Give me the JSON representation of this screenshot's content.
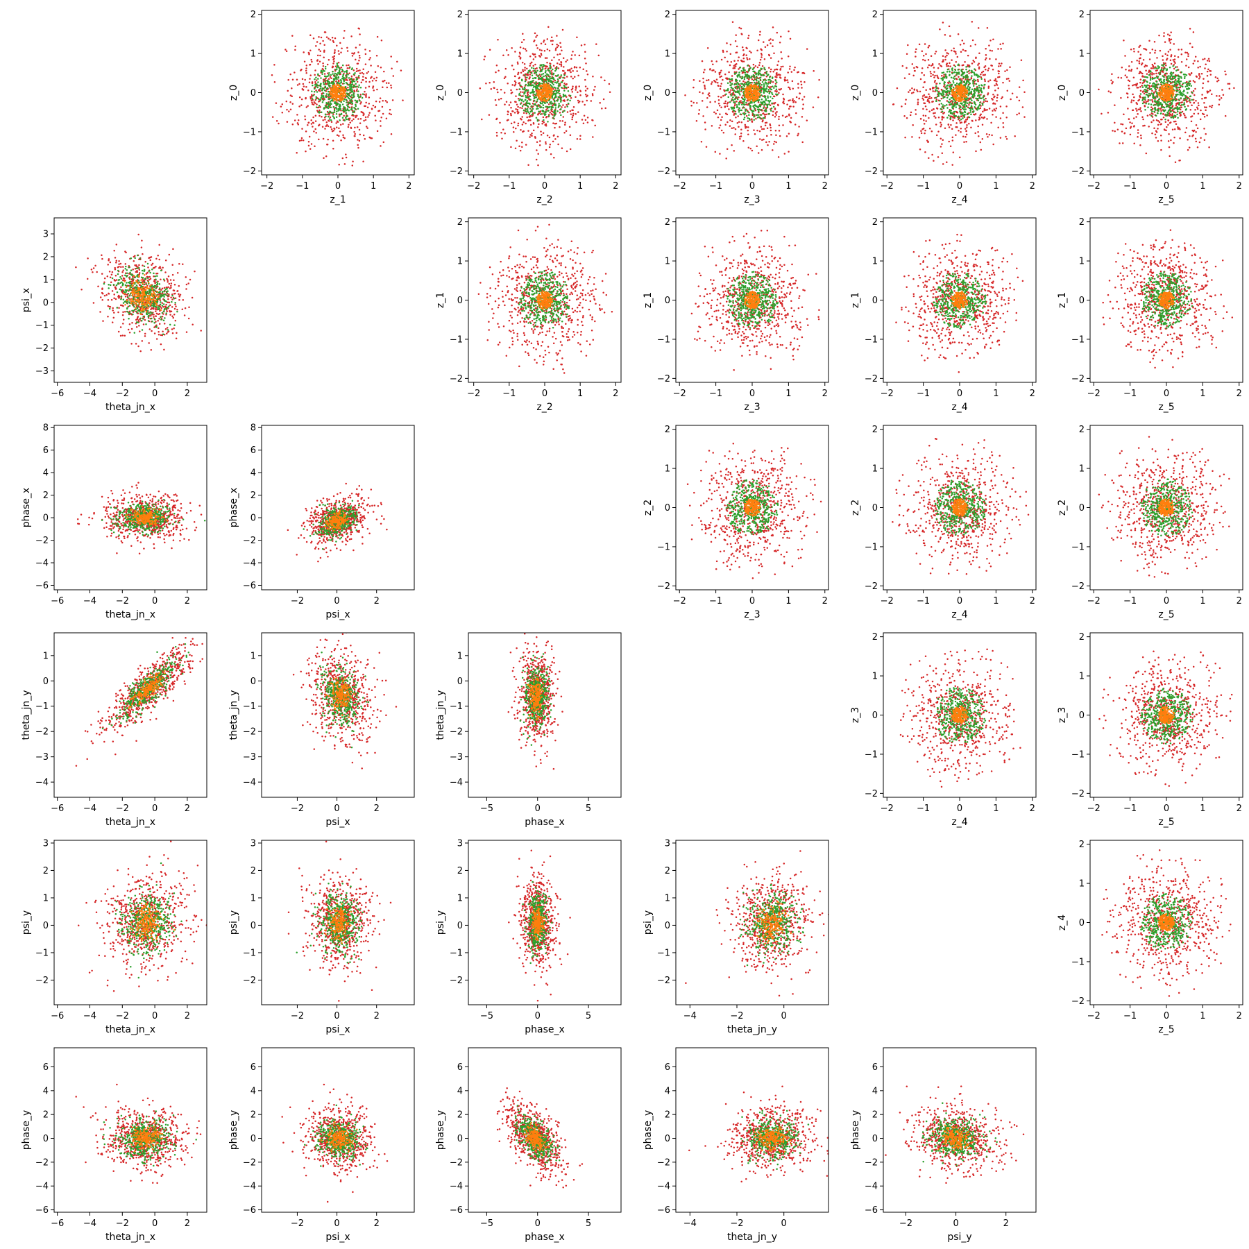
{
  "colors": {
    "outer": "#d62728",
    "mid": "#2ca02c",
    "inner": "#ff7f0e"
  },
  "chart_data": [
    {
      "type": "scatter",
      "row": 0,
      "col": 1,
      "xlabel": "z_1",
      "ylabel": "z_0",
      "xlim": [
        -2.15,
        2.15
      ],
      "ylim": [
        -2.1,
        2.1
      ],
      "xticks": [
        -2,
        -1,
        0,
        1,
        2
      ],
      "yticks": [
        -2,
        -1,
        0,
        1,
        2
      ],
      "dist": {
        "kind": "gauss",
        "mx": 0,
        "my": 0,
        "sx": 0.75,
        "sy": 0.72,
        "rho": 0,
        "clip": 1.95
      }
    },
    {
      "type": "scatter",
      "row": 0,
      "col": 2,
      "xlabel": "z_2",
      "ylabel": "z_0",
      "xlim": [
        -2.15,
        2.15
      ],
      "ylim": [
        -2.1,
        2.1
      ],
      "xticks": [
        -2,
        -1,
        0,
        1,
        2
      ],
      "yticks": [
        -2,
        -1,
        0,
        1,
        2
      ],
      "dist": {
        "kind": "gauss",
        "mx": 0,
        "my": 0,
        "sx": 0.75,
        "sy": 0.72,
        "rho": 0,
        "clip": 1.95
      }
    },
    {
      "type": "scatter",
      "row": 0,
      "col": 3,
      "xlabel": "z_3",
      "ylabel": "z_0",
      "xlim": [
        -2.1,
        2.1
      ],
      "ylim": [
        -2.1,
        2.1
      ],
      "xticks": [
        -2,
        -1,
        0,
        1,
        2
      ],
      "yticks": [
        -2,
        -1,
        0,
        1,
        2
      ],
      "dist": {
        "kind": "gauss",
        "mx": 0,
        "my": 0,
        "sx": 0.72,
        "sy": 0.72,
        "rho": 0,
        "clip": 1.9
      }
    },
    {
      "type": "scatter",
      "row": 0,
      "col": 4,
      "xlabel": "z_4",
      "ylabel": "z_0",
      "xlim": [
        -2.1,
        2.1
      ],
      "ylim": [
        -2.1,
        2.1
      ],
      "xticks": [
        -2,
        -1,
        0,
        1,
        2
      ],
      "yticks": [
        -2,
        -1,
        0,
        1,
        2
      ],
      "dist": {
        "kind": "gauss",
        "mx": 0,
        "my": 0,
        "sx": 0.72,
        "sy": 0.72,
        "rho": 0,
        "clip": 1.9
      }
    },
    {
      "type": "scatter",
      "row": 0,
      "col": 5,
      "xlabel": "z_5",
      "ylabel": "z_0",
      "xlim": [
        -2.1,
        2.1
      ],
      "ylim": [
        -2.1,
        2.1
      ],
      "xticks": [
        -2,
        -1,
        0,
        1,
        2
      ],
      "yticks": [
        -2,
        -1,
        0,
        1,
        2
      ],
      "dist": {
        "kind": "gauss",
        "mx": 0,
        "my": 0,
        "sx": 0.72,
        "sy": 0.72,
        "rho": 0,
        "clip": 1.9
      }
    },
    {
      "type": "scatter",
      "row": 1,
      "col": 0,
      "xlabel": "theta_jn_x",
      "ylabel": "psi_x",
      "xlim": [
        -6.2,
        3.2
      ],
      "ylim": [
        -3.5,
        3.7
      ],
      "xticks": [
        -6,
        -4,
        -2,
        0,
        2
      ],
      "yticks": [
        -3,
        -2,
        -1,
        0,
        1,
        2,
        3
      ],
      "dist": {
        "kind": "gauss",
        "mx": -0.7,
        "my": 0.3,
        "sx": 1.3,
        "sy": 0.95,
        "rho": -0.25
      }
    },
    {
      "type": "scatter",
      "row": 1,
      "col": 2,
      "xlabel": "z_2",
      "ylabel": "z_1",
      "xlim": [
        -2.15,
        2.15
      ],
      "ylim": [
        -2.1,
        2.1
      ],
      "xticks": [
        -2,
        -1,
        0,
        1,
        2
      ],
      "yticks": [
        -2,
        -1,
        0,
        1,
        2
      ],
      "dist": {
        "kind": "gauss",
        "mx": 0,
        "my": 0,
        "sx": 0.75,
        "sy": 0.72,
        "rho": 0,
        "clip": 1.95
      }
    },
    {
      "type": "scatter",
      "row": 1,
      "col": 3,
      "xlabel": "z_3",
      "ylabel": "z_1",
      "xlim": [
        -2.1,
        2.1
      ],
      "ylim": [
        -2.1,
        2.1
      ],
      "xticks": [
        -2,
        -1,
        0,
        1,
        2
      ],
      "yticks": [
        -2,
        -1,
        0,
        1,
        2
      ],
      "dist": {
        "kind": "gauss",
        "mx": 0,
        "my": 0,
        "sx": 0.72,
        "sy": 0.72,
        "rho": 0,
        "clip": 1.9
      }
    },
    {
      "type": "scatter",
      "row": 1,
      "col": 4,
      "xlabel": "z_4",
      "ylabel": "z_1",
      "xlim": [
        -2.1,
        2.1
      ],
      "ylim": [
        -2.1,
        2.1
      ],
      "xticks": [
        -2,
        -1,
        0,
        1,
        2
      ],
      "yticks": [
        -2,
        -1,
        0,
        1,
        2
      ],
      "dist": {
        "kind": "gauss",
        "mx": 0,
        "my": 0,
        "sx": 0.72,
        "sy": 0.72,
        "rho": 0,
        "clip": 1.9
      }
    },
    {
      "type": "scatter",
      "row": 1,
      "col": 5,
      "xlabel": "z_5",
      "ylabel": "z_1",
      "xlim": [
        -2.1,
        2.1
      ],
      "ylim": [
        -2.1,
        2.1
      ],
      "xticks": [
        -2,
        -1,
        0,
        1,
        2
      ],
      "yticks": [
        -2,
        -1,
        0,
        1,
        2
      ],
      "dist": {
        "kind": "gauss",
        "mx": 0,
        "my": 0,
        "sx": 0.72,
        "sy": 0.72,
        "rho": 0,
        "clip": 1.9
      }
    },
    {
      "type": "scatter",
      "row": 2,
      "col": 0,
      "xlabel": "theta_jn_x",
      "ylabel": "phase_x",
      "xlim": [
        -6.2,
        3.2
      ],
      "ylim": [
        -6.4,
        8.2
      ],
      "xticks": [
        -6,
        -4,
        -2,
        0,
        2
      ],
      "yticks": [
        -6,
        -4,
        -2,
        0,
        2,
        4,
        6,
        8
      ],
      "dist": {
        "kind": "gauss",
        "mx": -0.6,
        "my": 0,
        "sx": 1.3,
        "sy": 1.0,
        "rho": 0
      }
    },
    {
      "type": "scatter",
      "row": 2,
      "col": 1,
      "xlabel": "psi_x",
      "ylabel": "phase_x",
      "xlim": [
        -3.8,
        3.9
      ],
      "ylim": [
        -6.4,
        8.2
      ],
      "xticks": [
        -2,
        0,
        2
      ],
      "yticks": [
        -6,
        -4,
        -2,
        0,
        2,
        4,
        6,
        8
      ],
      "dist": {
        "kind": "gauss",
        "mx": 0,
        "my": -0.3,
        "sx": 0.75,
        "sy": 1.0,
        "rho": 0.3
      }
    },
    {
      "type": "scatter",
      "row": 2,
      "col": 3,
      "xlabel": "z_3",
      "ylabel": "z_2",
      "xlim": [
        -2.1,
        2.1
      ],
      "ylim": [
        -2.1,
        2.1
      ],
      "xticks": [
        -2,
        -1,
        0,
        1,
        2
      ],
      "yticks": [
        -2,
        -1,
        0,
        1,
        2
      ],
      "dist": {
        "kind": "gauss",
        "mx": 0,
        "my": 0,
        "sx": 0.72,
        "sy": 0.72,
        "rho": 0,
        "clip": 1.9
      }
    },
    {
      "type": "scatter",
      "row": 2,
      "col": 4,
      "xlabel": "z_4",
      "ylabel": "z_2",
      "xlim": [
        -2.1,
        2.1
      ],
      "ylim": [
        -2.1,
        2.1
      ],
      "xticks": [
        -2,
        -1,
        0,
        1,
        2
      ],
      "yticks": [
        -2,
        -1,
        0,
        1,
        2
      ],
      "dist": {
        "kind": "gauss",
        "mx": 0,
        "my": 0,
        "sx": 0.72,
        "sy": 0.72,
        "rho": 0,
        "clip": 1.9
      }
    },
    {
      "type": "scatter",
      "row": 2,
      "col": 5,
      "xlabel": "z_5",
      "ylabel": "z_2",
      "xlim": [
        -2.1,
        2.1
      ],
      "ylim": [
        -2.1,
        2.1
      ],
      "xticks": [
        -2,
        -1,
        0,
        1,
        2
      ],
      "yticks": [
        -2,
        -1,
        0,
        1,
        2
      ],
      "dist": {
        "kind": "gauss",
        "mx": 0,
        "my": 0,
        "sx": 0.72,
        "sy": 0.72,
        "rho": 0,
        "clip": 1.9
      }
    },
    {
      "type": "scatter",
      "row": 3,
      "col": 0,
      "xlabel": "theta_jn_x",
      "ylabel": "theta_jn_y",
      "xlim": [
        -6.2,
        3.2
      ],
      "ylim": [
        -4.6,
        1.9
      ],
      "xticks": [
        -6,
        -4,
        -2,
        0,
        2
      ],
      "yticks": [
        -4,
        -3,
        -2,
        -1,
        0,
        1
      ],
      "dist": {
        "kind": "gauss",
        "mx": -0.4,
        "my": -0.3,
        "sx": 1.35,
        "sy": 0.85,
        "rho": 0.82
      }
    },
    {
      "type": "scatter",
      "row": 3,
      "col": 1,
      "xlabel": "psi_x",
      "ylabel": "theta_jn_y",
      "xlim": [
        -3.8,
        3.9
      ],
      "ylim": [
        -4.6,
        1.9
      ],
      "xticks": [
        -2,
        0,
        2
      ],
      "yticks": [
        -4,
        -3,
        -2,
        -1,
        0,
        1
      ],
      "dist": {
        "kind": "gauss",
        "mx": 0.2,
        "my": -0.6,
        "sx": 0.8,
        "sy": 0.9,
        "rho": -0.2
      }
    },
    {
      "type": "scatter",
      "row": 3,
      "col": 2,
      "xlabel": "phase_x",
      "ylabel": "theta_jn_y",
      "xlim": [
        -6.8,
        8.2
      ],
      "ylim": [
        -4.6,
        1.9
      ],
      "xticks": [
        -5,
        0,
        5
      ],
      "yticks": [
        -4,
        -3,
        -2,
        -1,
        0,
        1
      ],
      "dist": {
        "kind": "gauss",
        "mx": -0.1,
        "my": -0.6,
        "sx": 0.9,
        "sy": 0.95,
        "rho": 0
      }
    },
    {
      "type": "scatter",
      "row": 3,
      "col": 4,
      "xlabel": "z_4",
      "ylabel": "z_3",
      "xlim": [
        -2.1,
        2.1
      ],
      "ylim": [
        -2.1,
        2.1
      ],
      "xticks": [
        -2,
        -1,
        0,
        1,
        2
      ],
      "yticks": [
        -2,
        -1,
        0,
        1,
        2
      ],
      "dist": {
        "kind": "gauss",
        "mx": 0,
        "my": 0,
        "sx": 0.72,
        "sy": 0.72,
        "rho": 0,
        "clip": 1.9
      }
    },
    {
      "type": "scatter",
      "row": 3,
      "col": 5,
      "xlabel": "z_5",
      "ylabel": "z_3",
      "xlim": [
        -2.1,
        2.1
      ],
      "ylim": [
        -2.1,
        2.1
      ],
      "xticks": [
        -2,
        -1,
        0,
        1,
        2
      ],
      "yticks": [
        -2,
        -1,
        0,
        1,
        2
      ],
      "dist": {
        "kind": "gauss",
        "mx": 0,
        "my": 0,
        "sx": 0.72,
        "sy": 0.72,
        "rho": 0,
        "clip": 1.9
      }
    },
    {
      "type": "scatter",
      "row": 4,
      "col": 0,
      "xlabel": "theta_jn_x",
      "ylabel": "psi_y",
      "xlim": [
        -6.2,
        3.2
      ],
      "ylim": [
        -2.9,
        3.1
      ],
      "xticks": [
        -6,
        -4,
        -2,
        0,
        2
      ],
      "yticks": [
        -2,
        -1,
        0,
        1,
        2,
        3
      ],
      "dist": {
        "kind": "gauss",
        "mx": -0.5,
        "my": 0.1,
        "sx": 1.3,
        "sy": 0.85,
        "rho": 0.1
      }
    },
    {
      "type": "scatter",
      "row": 4,
      "col": 1,
      "xlabel": "psi_x",
      "ylabel": "psi_y",
      "xlim": [
        -3.8,
        3.9
      ],
      "ylim": [
        -2.9,
        3.1
      ],
      "xticks": [
        -2,
        0,
        2
      ],
      "yticks": [
        -2,
        -1,
        0,
        1,
        2,
        3
      ],
      "dist": {
        "kind": "gauss",
        "mx": 0.1,
        "my": 0.1,
        "sx": 0.8,
        "sy": 0.85,
        "rho": 0
      }
    },
    {
      "type": "scatter",
      "row": 4,
      "col": 2,
      "xlabel": "phase_x",
      "ylabel": "psi_y",
      "xlim": [
        -6.8,
        8.2
      ],
      "ylim": [
        -2.9,
        3.1
      ],
      "xticks": [
        -5,
        0,
        5
      ],
      "yticks": [
        -2,
        -1,
        0,
        1,
        2,
        3
      ],
      "dist": {
        "kind": "gauss",
        "mx": 0,
        "my": 0.1,
        "sx": 0.8,
        "sy": 0.85,
        "rho": 0
      }
    },
    {
      "type": "scatter",
      "row": 4,
      "col": 3,
      "xlabel": "theta_jn_y",
      "ylabel": "psi_y",
      "xlim": [
        -4.6,
        1.9
      ],
      "ylim": [
        -2.9,
        3.1
      ],
      "xticks": [
        -4,
        -2,
        0
      ],
      "yticks": [
        -2,
        -1,
        0,
        1,
        2,
        3
      ],
      "dist": {
        "kind": "gauss",
        "mx": -0.5,
        "my": 0.1,
        "sx": 0.85,
        "sy": 0.85,
        "rho": 0.05
      }
    },
    {
      "type": "scatter",
      "row": 4,
      "col": 5,
      "xlabel": "z_5",
      "ylabel": "z_4",
      "xlim": [
        -2.1,
        2.1
      ],
      "ylim": [
        -2.1,
        2.1
      ],
      "xticks": [
        -2,
        -1,
        0,
        1,
        2
      ],
      "yticks": [
        -2,
        -1,
        0,
        1,
        2
      ],
      "dist": {
        "kind": "gauss",
        "mx": 0,
        "my": 0,
        "sx": 0.72,
        "sy": 0.72,
        "rho": 0,
        "clip": 1.9
      }
    },
    {
      "type": "scatter",
      "row": 5,
      "col": 0,
      "xlabel": "theta_jn_x",
      "ylabel": "phase_y",
      "xlim": [
        -6.2,
        3.2
      ],
      "ylim": [
        -6.2,
        7.6
      ],
      "xticks": [
        -6,
        -4,
        -2,
        0,
        2
      ],
      "yticks": [
        -6,
        -4,
        -2,
        0,
        2,
        4,
        6
      ],
      "dist": {
        "kind": "gauss",
        "mx": -0.6,
        "my": 0,
        "sx": 1.3,
        "sy": 1.3,
        "rho": 0
      }
    },
    {
      "type": "scatter",
      "row": 5,
      "col": 1,
      "xlabel": "psi_x",
      "ylabel": "phase_y",
      "xlim": [
        -3.8,
        3.9
      ],
      "ylim": [
        -6.2,
        7.6
      ],
      "xticks": [
        -2,
        0,
        2
      ],
      "yticks": [
        -6,
        -4,
        -2,
        0,
        2,
        4,
        6
      ],
      "dist": {
        "kind": "gauss",
        "mx": 0.1,
        "my": 0,
        "sx": 0.85,
        "sy": 1.3,
        "rho": -0.1
      }
    },
    {
      "type": "scatter",
      "row": 5,
      "col": 2,
      "xlabel": "phase_x",
      "ylabel": "phase_y",
      "xlim": [
        -6.8,
        8.2
      ],
      "ylim": [
        -6.2,
        7.6
      ],
      "xticks": [
        -5,
        0,
        5
      ],
      "yticks": [
        -6,
        -4,
        -2,
        0,
        2,
        4,
        6
      ],
      "dist": {
        "kind": "gauss",
        "mx": -0.2,
        "my": 0,
        "sx": 1.4,
        "sy": 1.5,
        "rho": -0.55
      }
    },
    {
      "type": "scatter",
      "row": 5,
      "col": 3,
      "xlabel": "theta_jn_y",
      "ylabel": "phase_y",
      "xlim": [
        -4.6,
        1.9
      ],
      "ylim": [
        -6.2,
        7.6
      ],
      "xticks": [
        -4,
        -2,
        0
      ],
      "yticks": [
        -6,
        -4,
        -2,
        0,
        2,
        4,
        6
      ],
      "dist": {
        "kind": "gauss",
        "mx": -0.5,
        "my": 0,
        "sx": 0.9,
        "sy": 1.3,
        "rho": 0
      }
    },
    {
      "type": "scatter",
      "row": 5,
      "col": 4,
      "xlabel": "psi_y",
      "ylabel": "phase_y",
      "xlim": [
        -2.9,
        3.2
      ],
      "ylim": [
        -6.2,
        7.6
      ],
      "xticks": [
        -2,
        0,
        2
      ],
      "yticks": [
        -6,
        -4,
        -2,
        0,
        2,
        4,
        6
      ],
      "dist": {
        "kind": "gauss",
        "mx": 0,
        "my": 0,
        "sx": 0.85,
        "sy": 1.3,
        "rho": -0.15
      }
    }
  ]
}
